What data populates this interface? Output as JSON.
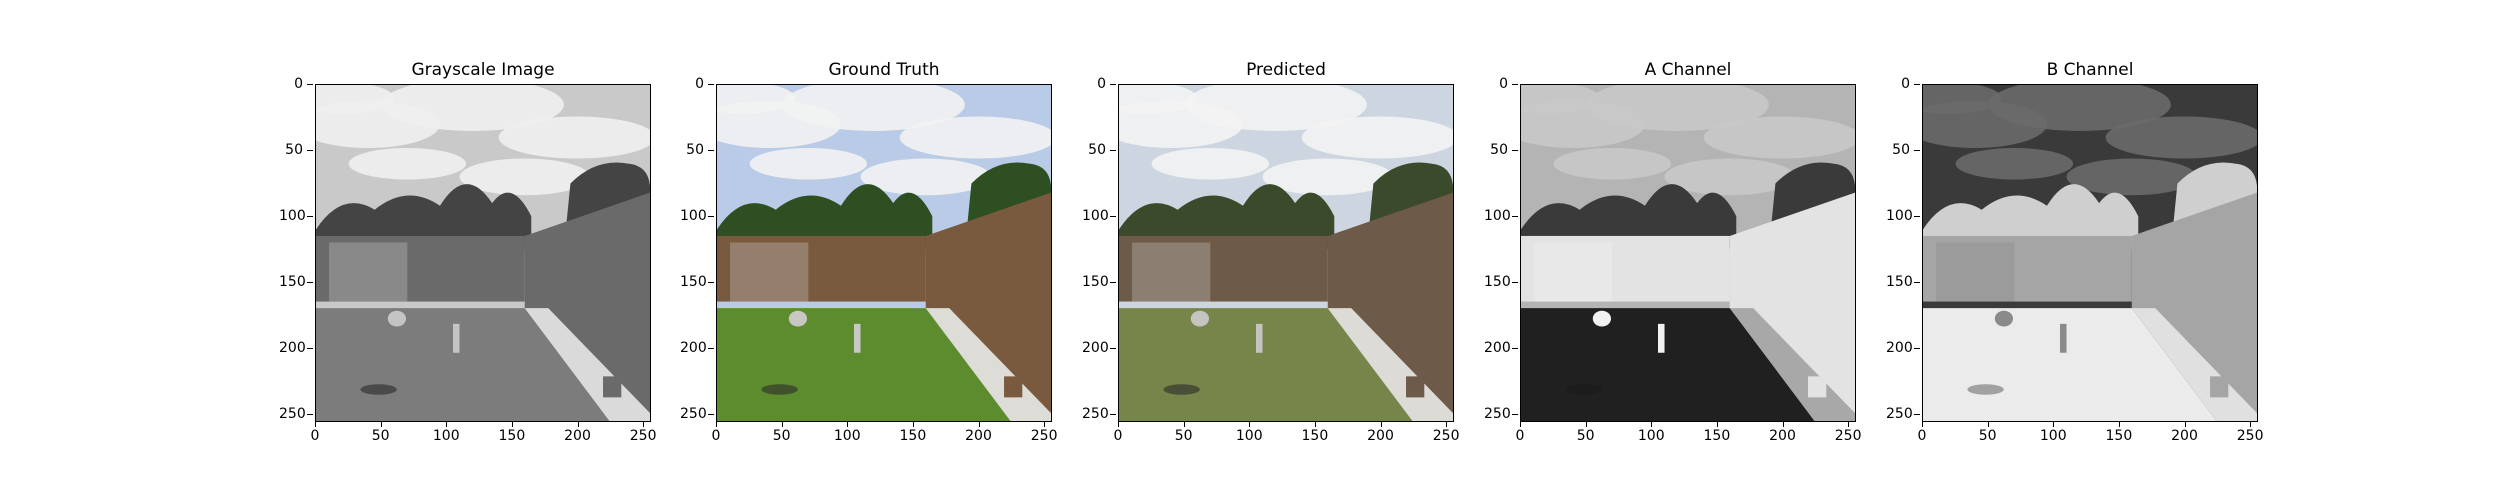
{
  "figure": {
    "panels": [
      {
        "title": "Grayscale Image",
        "kind": "gray"
      },
      {
        "title": "Ground Truth",
        "kind": "color"
      },
      {
        "title": "Predicted",
        "kind": "pred"
      },
      {
        "title": "A Channel",
        "kind": "achan"
      },
      {
        "title": "B Channel",
        "kind": "bchan"
      }
    ],
    "y_ticks": [
      "0",
      "50",
      "100",
      "150",
      "200",
      "250"
    ],
    "x_ticks": [
      "0",
      "50",
      "100",
      "150",
      "200",
      "250"
    ],
    "image_size": [
      256,
      256
    ]
  }
}
